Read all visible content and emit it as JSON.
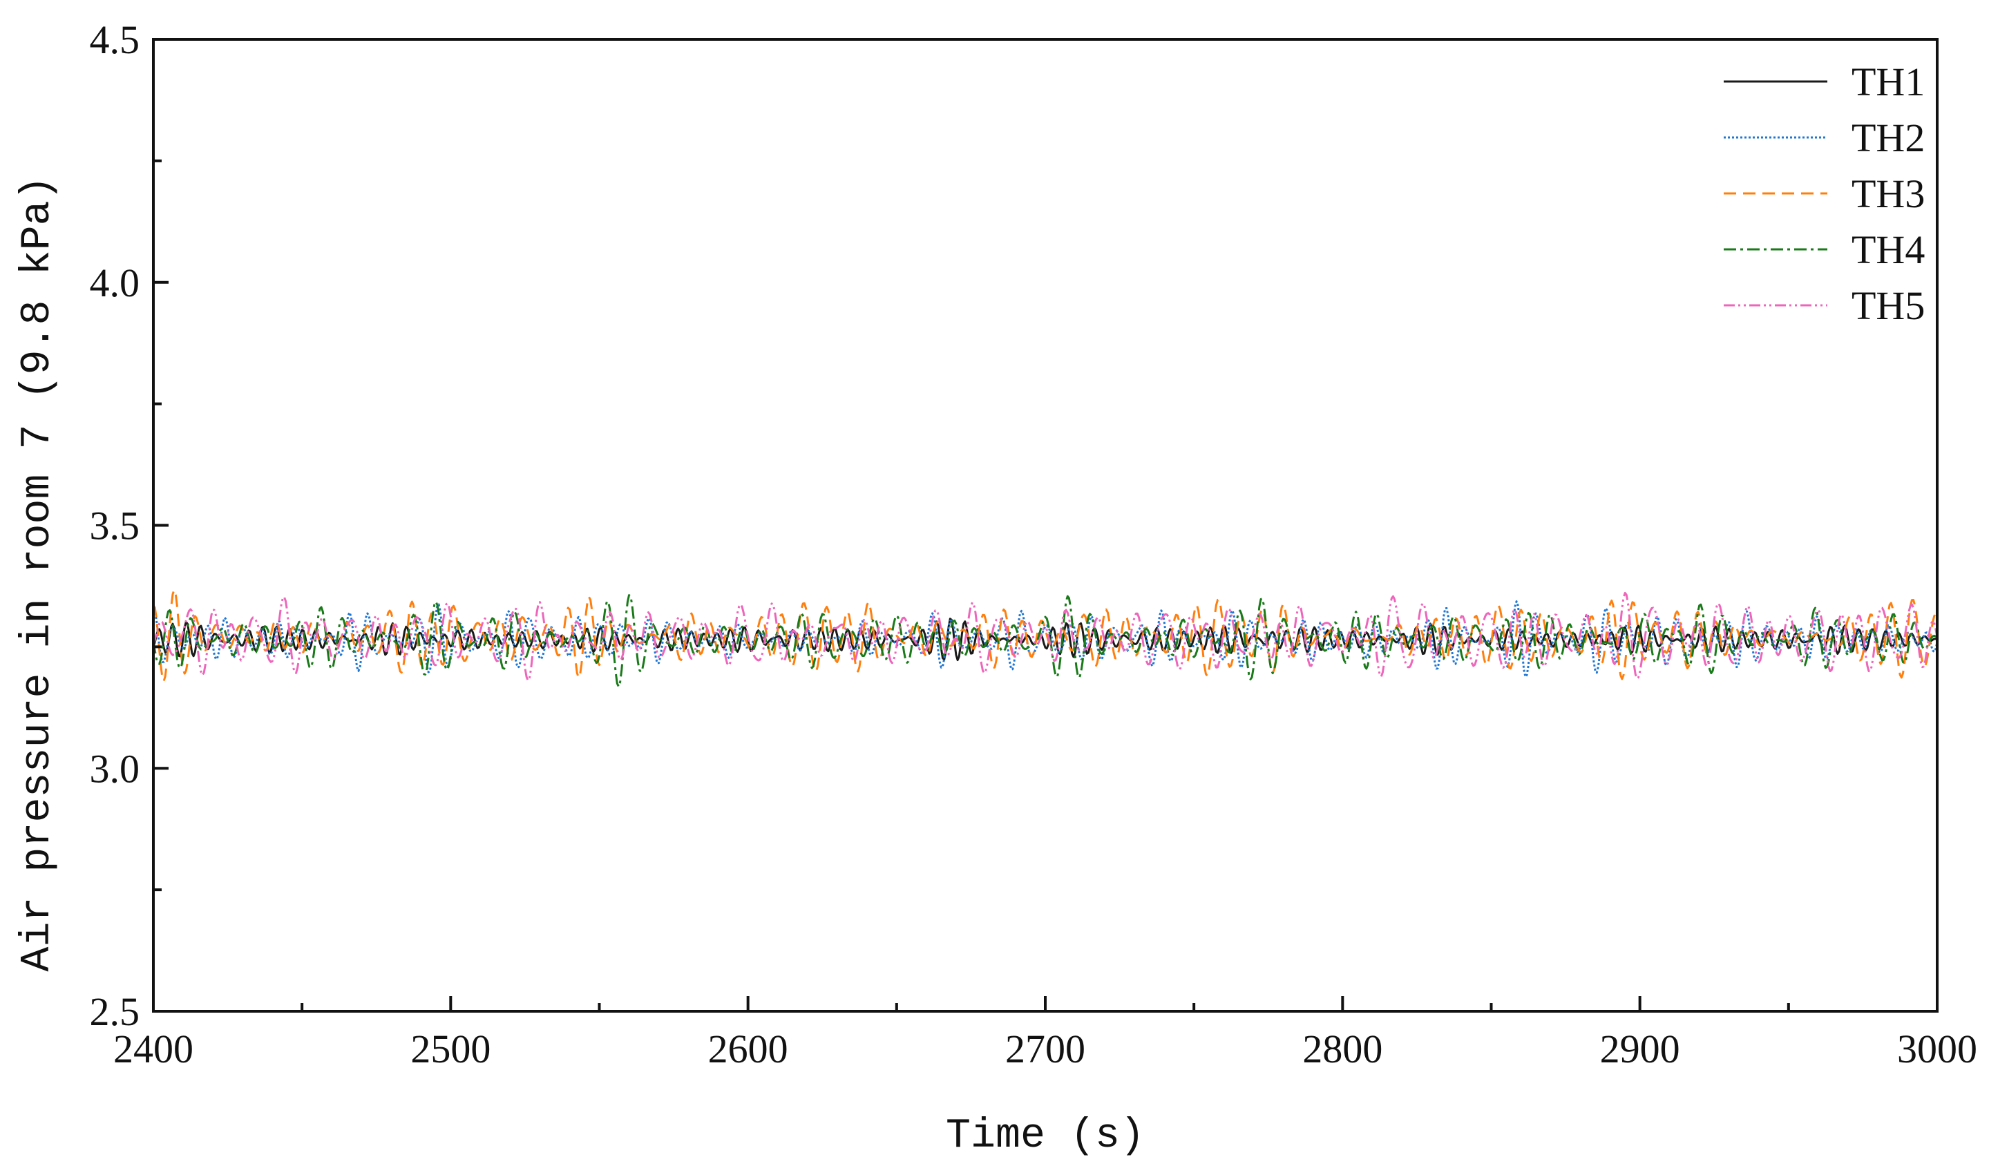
{
  "chart_data": {
    "type": "line",
    "title": "",
    "xlabel": "Time (s)",
    "ylabel": "Air pressure in room 7 (9.8 kPa)",
    "xlim": [
      2400,
      3000
    ],
    "ylim": [
      2.5,
      4.5
    ],
    "x_ticks": [
      "2400",
      "2500",
      "2600",
      "2700",
      "2800",
      "2900",
      "3000"
    ],
    "y_ticks": [
      "2.5",
      "3.0",
      "3.5",
      "4.0",
      "4.5"
    ],
    "x_minor_step": 50,
    "y_minor_step": 0.25,
    "grid": false,
    "legend_position": "top-right",
    "x_sampling": {
      "start": 2400,
      "end": 3000,
      "step": 0.5
    },
    "series": [
      {
        "name": "TH1",
        "color": "#1a1a1a",
        "dash": "solid",
        "mean": 3.265,
        "amplitude": 0.035,
        "period": 5.2
      },
      {
        "name": "TH2",
        "color": "#1f77d4",
        "dash": "dotted",
        "mean": 3.265,
        "amplitude": 0.055,
        "period": 6.0
      },
      {
        "name": "TH3",
        "color": "#ff7f0e",
        "dash": "dashed",
        "mean": 3.27,
        "amplitude": 0.07,
        "period": 7.5
      },
      {
        "name": "TH4",
        "color": "#1a7a1a",
        "dash": "dashdot",
        "mean": 3.265,
        "amplitude": 0.065,
        "period": 6.8
      },
      {
        "name": "TH5",
        "color": "#ee66bb",
        "dash": "dashdotdot",
        "mean": 3.27,
        "amplitude": 0.075,
        "period": 8.5
      }
    ]
  }
}
